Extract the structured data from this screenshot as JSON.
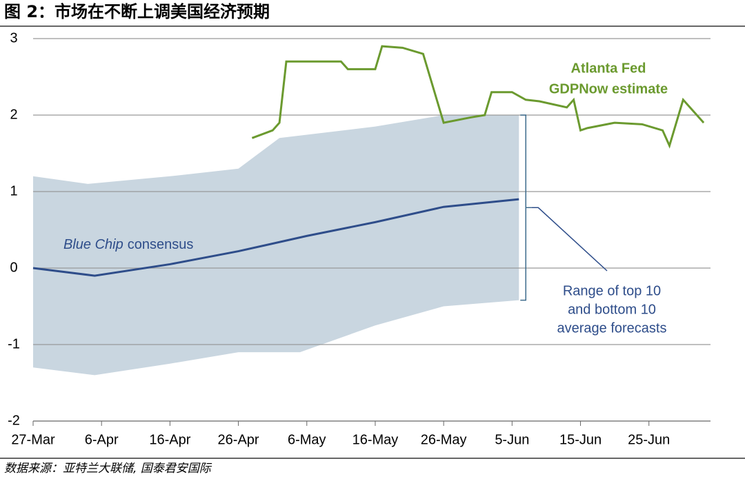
{
  "header": {
    "title": "图 2：市场在不断上调美国经济预期"
  },
  "footer": {
    "source": "数据来源：亚特兰大联储, 国泰君安国际"
  },
  "chart_data": {
    "type": "line",
    "xlim": [
      0,
      99
    ],
    "xticks": [
      {
        "value": 0,
        "label": "27-Mar"
      },
      {
        "value": 10,
        "label": "6-Apr"
      },
      {
        "value": 20,
        "label": "16-Apr"
      },
      {
        "value": 30,
        "label": "26-Apr"
      },
      {
        "value": 40,
        "label": "6-May"
      },
      {
        "value": 50,
        "label": "16-May"
      },
      {
        "value": 60,
        "label": "26-May"
      },
      {
        "value": 70,
        "label": "5-Jun"
      },
      {
        "value": 80,
        "label": "15-Jun"
      },
      {
        "value": 90,
        "label": "25-Jun"
      }
    ],
    "ylim": [
      -2,
      3
    ],
    "yticks": [
      -2,
      -1,
      0,
      1,
      2,
      3
    ],
    "grid": true,
    "band": {
      "color": "#c9d6e0",
      "x": [
        0,
        8,
        20,
        30,
        36,
        50,
        60,
        71
      ],
      "upper": [
        1.2,
        1.1,
        1.2,
        1.3,
        1.7,
        1.85,
        2.0,
        2.0
      ],
      "lower_x": [
        0,
        9,
        20,
        30,
        39,
        50,
        60,
        71
      ],
      "lower": [
        -1.3,
        -1.4,
        -1.25,
        -1.1,
        -1.1,
        -0.75,
        -0.5,
        -0.42
      ]
    },
    "series": [
      {
        "name": "Blue Chip consensus",
        "color": "#2e4d8a",
        "x": [
          0,
          9,
          20,
          30,
          40,
          50,
          60,
          71
        ],
        "values": [
          0,
          -0.1,
          0.05,
          0.22,
          0.42,
          0.6,
          0.8,
          0.9
        ]
      },
      {
        "name": "GDPNow",
        "color": "#6b9a2f",
        "x": [
          32,
          35,
          36,
          37,
          45,
          46,
          50,
          51,
          54,
          57,
          60,
          64,
          66,
          67,
          70,
          72,
          74,
          78,
          79,
          80,
          81,
          85,
          89,
          92,
          93,
          95,
          98
        ],
        "values": [
          1.7,
          1.8,
          1.9,
          2.7,
          2.7,
          2.6,
          2.6,
          2.9,
          2.88,
          2.8,
          1.9,
          1.97,
          2.0,
          2.3,
          2.3,
          2.2,
          2.18,
          2.1,
          2.2,
          1.8,
          1.83,
          1.9,
          1.88,
          1.8,
          1.6,
          2.2,
          1.9
        ]
      }
    ],
    "annotations": {
      "blue_chip_italic": "Blue Chip",
      "blue_chip_rest": "consensus",
      "atlanta": [
        "Atlanta Fed",
        "GDPNow estimate"
      ],
      "range": [
        "Range of top 10",
        "and bottom 10",
        "average forecasts"
      ]
    }
  }
}
